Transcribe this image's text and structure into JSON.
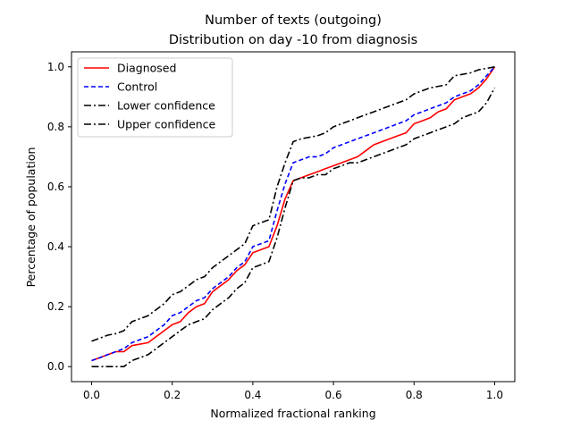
{
  "chart_data": {
    "type": "line",
    "title": "Number of texts (outgoing)",
    "subtitle": "Distribution on day -10 from diagnosis",
    "xlabel": "Normalized fractional ranking",
    "ylabel": "Percentage of population",
    "xlim": [
      -0.05,
      1.05
    ],
    "ylim": [
      -0.05,
      1.05
    ],
    "xticks": [
      0.0,
      0.2,
      0.4,
      0.6,
      0.8,
      1.0
    ],
    "yticks": [
      0.0,
      0.2,
      0.4,
      0.6,
      0.8,
      1.0
    ],
    "xtick_labels": [
      "0.0",
      "0.2",
      "0.4",
      "0.6",
      "0.8",
      "1.0"
    ],
    "ytick_labels": [
      "0.0",
      "0.2",
      "0.4",
      "0.6",
      "0.8",
      "1.0"
    ],
    "grid": false,
    "legend_position": "top-left",
    "series": [
      {
        "name": "Diagnosed",
        "color": "#ff0000",
        "dash": "solid",
        "x": [
          0.0,
          0.02,
          0.04,
          0.06,
          0.08,
          0.1,
          0.12,
          0.14,
          0.16,
          0.18,
          0.2,
          0.22,
          0.24,
          0.26,
          0.28,
          0.3,
          0.32,
          0.34,
          0.36,
          0.38,
          0.4,
          0.42,
          0.44,
          0.46,
          0.48,
          0.5,
          0.52,
          0.54,
          0.56,
          0.58,
          0.6,
          0.62,
          0.64,
          0.66,
          0.68,
          0.7,
          0.72,
          0.74,
          0.76,
          0.78,
          0.8,
          0.82,
          0.84,
          0.86,
          0.88,
          0.9,
          0.92,
          0.94,
          0.96,
          0.98,
          1.0
        ],
        "y": [
          0.02,
          0.03,
          0.04,
          0.05,
          0.05,
          0.07,
          0.075,
          0.08,
          0.1,
          0.12,
          0.14,
          0.15,
          0.18,
          0.2,
          0.21,
          0.25,
          0.27,
          0.29,
          0.32,
          0.34,
          0.38,
          0.39,
          0.4,
          0.47,
          0.56,
          0.62,
          0.63,
          0.64,
          0.65,
          0.66,
          0.67,
          0.68,
          0.69,
          0.7,
          0.72,
          0.74,
          0.75,
          0.76,
          0.77,
          0.78,
          0.81,
          0.82,
          0.83,
          0.85,
          0.86,
          0.89,
          0.9,
          0.91,
          0.93,
          0.96,
          1.0
        ]
      },
      {
        "name": "Control",
        "color": "#0000ff",
        "dash": "dashed",
        "x": [
          0.0,
          0.02,
          0.04,
          0.06,
          0.08,
          0.1,
          0.12,
          0.14,
          0.16,
          0.18,
          0.2,
          0.22,
          0.24,
          0.26,
          0.28,
          0.3,
          0.32,
          0.34,
          0.36,
          0.38,
          0.4,
          0.42,
          0.44,
          0.46,
          0.48,
          0.5,
          0.52,
          0.54,
          0.56,
          0.58,
          0.6,
          0.62,
          0.64,
          0.66,
          0.68,
          0.7,
          0.72,
          0.74,
          0.76,
          0.78,
          0.8,
          0.82,
          0.84,
          0.86,
          0.88,
          0.9,
          0.92,
          0.94,
          0.96,
          0.98,
          1.0
        ],
        "y": [
          0.02,
          0.03,
          0.04,
          0.05,
          0.06,
          0.08,
          0.09,
          0.1,
          0.12,
          0.14,
          0.17,
          0.18,
          0.2,
          0.22,
          0.23,
          0.26,
          0.28,
          0.3,
          0.33,
          0.35,
          0.4,
          0.41,
          0.42,
          0.52,
          0.61,
          0.68,
          0.69,
          0.7,
          0.7,
          0.71,
          0.73,
          0.74,
          0.75,
          0.76,
          0.77,
          0.78,
          0.79,
          0.8,
          0.81,
          0.82,
          0.84,
          0.85,
          0.86,
          0.87,
          0.88,
          0.9,
          0.91,
          0.92,
          0.94,
          0.97,
          1.0
        ]
      },
      {
        "name": "Lower confidence",
        "color": "#000000",
        "dash": "dashdot",
        "x": [
          0.0,
          0.02,
          0.04,
          0.06,
          0.08,
          0.1,
          0.12,
          0.14,
          0.16,
          0.18,
          0.2,
          0.22,
          0.24,
          0.26,
          0.28,
          0.3,
          0.32,
          0.34,
          0.36,
          0.38,
          0.4,
          0.42,
          0.44,
          0.46,
          0.48,
          0.5,
          0.52,
          0.54,
          0.56,
          0.58,
          0.6,
          0.62,
          0.64,
          0.66,
          0.68,
          0.7,
          0.72,
          0.74,
          0.76,
          0.78,
          0.8,
          0.82,
          0.84,
          0.86,
          0.88,
          0.9,
          0.92,
          0.94,
          0.96,
          0.98,
          1.0
        ],
        "y": [
          0.0,
          0.0,
          0.0,
          0.0,
          0.0,
          0.02,
          0.03,
          0.04,
          0.06,
          0.08,
          0.1,
          0.12,
          0.14,
          0.15,
          0.16,
          0.19,
          0.21,
          0.23,
          0.26,
          0.28,
          0.33,
          0.34,
          0.35,
          0.43,
          0.53,
          0.62,
          0.63,
          0.63,
          0.64,
          0.64,
          0.66,
          0.67,
          0.68,
          0.68,
          0.69,
          0.7,
          0.71,
          0.72,
          0.73,
          0.74,
          0.76,
          0.77,
          0.78,
          0.79,
          0.8,
          0.81,
          0.83,
          0.84,
          0.85,
          0.88,
          0.93
        ]
      },
      {
        "name": "Upper confidence",
        "color": "#000000",
        "dash": "dashdot",
        "x": [
          0.0,
          0.02,
          0.04,
          0.06,
          0.08,
          0.1,
          0.12,
          0.14,
          0.16,
          0.18,
          0.2,
          0.22,
          0.24,
          0.26,
          0.28,
          0.3,
          0.32,
          0.34,
          0.36,
          0.38,
          0.4,
          0.42,
          0.44,
          0.46,
          0.48,
          0.5,
          0.52,
          0.54,
          0.56,
          0.58,
          0.6,
          0.62,
          0.64,
          0.66,
          0.68,
          0.7,
          0.72,
          0.74,
          0.76,
          0.78,
          0.8,
          0.82,
          0.84,
          0.86,
          0.88,
          0.9,
          0.92,
          0.94,
          0.96,
          0.98,
          1.0
        ],
        "y": [
          0.085,
          0.095,
          0.105,
          0.11,
          0.12,
          0.15,
          0.16,
          0.17,
          0.19,
          0.21,
          0.24,
          0.25,
          0.27,
          0.29,
          0.3,
          0.33,
          0.35,
          0.37,
          0.39,
          0.41,
          0.47,
          0.48,
          0.49,
          0.6,
          0.68,
          0.75,
          0.76,
          0.765,
          0.77,
          0.78,
          0.8,
          0.81,
          0.82,
          0.83,
          0.84,
          0.85,
          0.86,
          0.87,
          0.88,
          0.89,
          0.91,
          0.92,
          0.93,
          0.935,
          0.94,
          0.97,
          0.975,
          0.98,
          0.99,
          0.995,
          1.0
        ]
      }
    ]
  }
}
